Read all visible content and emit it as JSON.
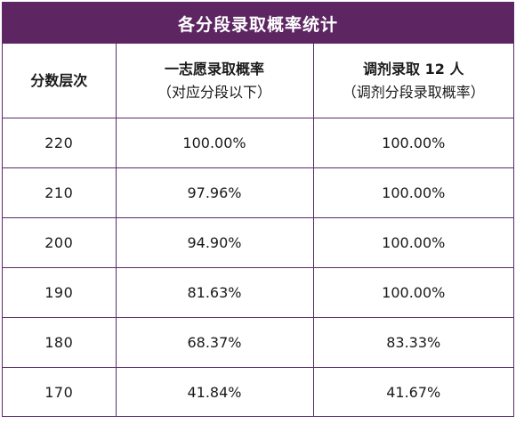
{
  "title": "各分段录取概率统计",
  "headers": {
    "score": "分数层次",
    "first_choice": {
      "main": "一志愿录取概率",
      "sub": "（对应分段以下）"
    },
    "adjust": {
      "main": "调剂录取 12 人",
      "sub": "（调剂分段录取概率）"
    }
  },
  "rows": [
    {
      "score": "220",
      "first_choice": "100.00%",
      "adjust": "100.00%"
    },
    {
      "score": "210",
      "first_choice": "97.96%",
      "adjust": "100.00%"
    },
    {
      "score": "200",
      "first_choice": "94.90%",
      "adjust": "100.00%"
    },
    {
      "score": "190",
      "first_choice": "81.63%",
      "adjust": "100.00%"
    },
    {
      "score": "180",
      "first_choice": "68.37%",
      "adjust": "83.33%"
    },
    {
      "score": "170",
      "first_choice": "41.84%",
      "adjust": "41.67%"
    }
  ],
  "colors": {
    "header_bg": "#5d2663",
    "border": "#5a2a6a"
  }
}
